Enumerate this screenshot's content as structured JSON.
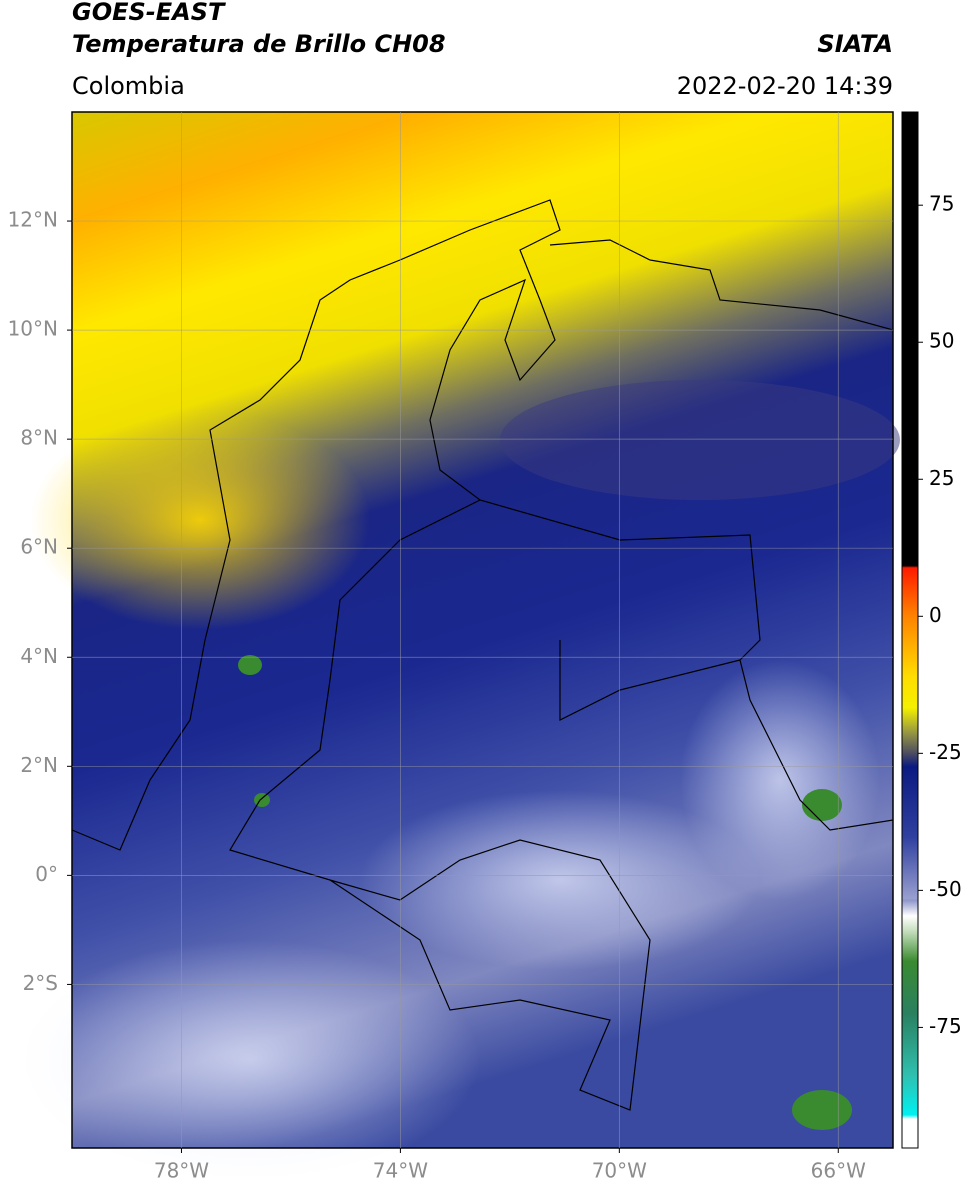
{
  "header": {
    "satellite": "GOES-EAST",
    "product": "Temperatura de Brillo CH08",
    "agency": "SIATA",
    "region": "Colombia",
    "datetime": "2022-02-20 14:39"
  },
  "map": {
    "xlim": [
      -80,
      -65
    ],
    "ylim": [
      -5,
      14
    ],
    "xticks": [
      {
        "value": -78,
        "label": "78°W"
      },
      {
        "value": -74,
        "label": "74°W"
      },
      {
        "value": -70,
        "label": "70°W"
      },
      {
        "value": -66,
        "label": "66°W"
      }
    ],
    "yticks": [
      {
        "value": 12,
        "label": "12°N"
      },
      {
        "value": 10,
        "label": "10°N"
      },
      {
        "value": 8,
        "label": "8°N"
      },
      {
        "value": 6,
        "label": "6°N"
      },
      {
        "value": 4,
        "label": "4°N"
      },
      {
        "value": 2,
        "label": "2°N"
      },
      {
        "value": 0,
        "label": "0°"
      },
      {
        "value": -2,
        "label": "2°S"
      }
    ],
    "grid": true
  },
  "colorbar": {
    "lim": [
      -97,
      92
    ],
    "ticks": [
      75,
      50,
      25,
      0,
      -25,
      -50,
      -75
    ]
  }
}
